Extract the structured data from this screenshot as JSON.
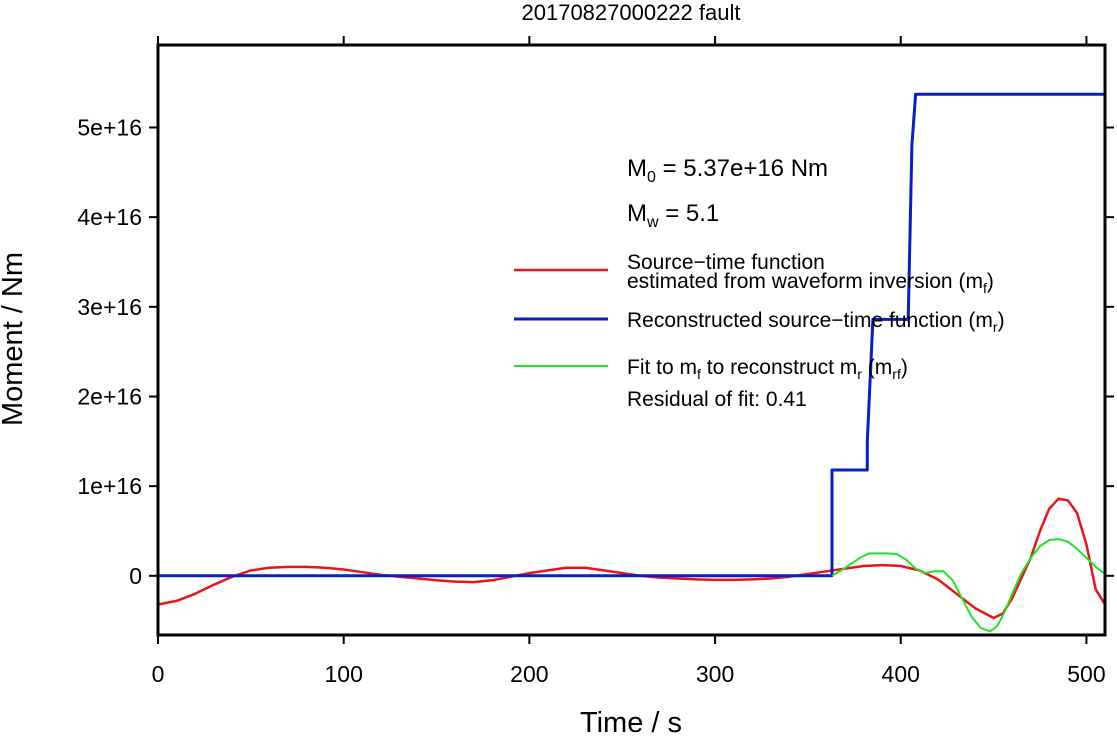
{
  "chart_data": {
    "type": "line",
    "title": "20170827000222 fault",
    "xlabel": "Time / s",
    "ylabel": "Moment / Nm",
    "xlim": [
      0,
      510
    ],
    "ylim": [
      -6600000000000000.0,
      5.92e+16
    ],
    "x_ticks": [
      0,
      100,
      200,
      300,
      400,
      500
    ],
    "x_tick_labels": [
      "0",
      "100",
      "200",
      "300",
      "400",
      "500"
    ],
    "y_ticks": [
      0,
      1e+16,
      2e+16,
      3e+16,
      4e+16,
      5e+16
    ],
    "y_tick_labels": [
      "0",
      "1e+16",
      "2e+16",
      "3e+16",
      "4e+16",
      "5e+16"
    ],
    "grid": false,
    "legend_position": "right",
    "annotations": {
      "m0_base": "M",
      "m0_sub": "0",
      "m0_rest": " = 5.37e+16 Nm",
      "mw_base": "M",
      "mw_sub": "w",
      "mw_rest": " = 5.1",
      "residual": "Residual of fit: 0.41"
    },
    "legend": [
      {
        "color": "#e8141e",
        "line1": "Source−time function",
        "line2_pre": "estimated from waveform inversion (m",
        "line2_sub": "f",
        "line2_post": ")"
      },
      {
        "color": "#0a1ec8",
        "line1_pre": "Reconstructed source−time function (m",
        "line1_sub": "r",
        "line1_post": ")"
      },
      {
        "color": "#1ee61e",
        "pre": "Fit to m",
        "sub1": "f",
        "mid": " to reconstruct m",
        "sub2": "r",
        "mid2": " (m",
        "sub3": "rf",
        "post": ")"
      }
    ],
    "series": [
      {
        "color": "#e8141e",
        "x": [
          0,
          10,
          20,
          30,
          40,
          50,
          60,
          70,
          80,
          90,
          100,
          110,
          120,
          130,
          140,
          150,
          160,
          170,
          180,
          190,
          200,
          210,
          220,
          230,
          240,
          250,
          260,
          270,
          280,
          290,
          300,
          310,
          320,
          330,
          340,
          350,
          360,
          370,
          380,
          390,
          400,
          410,
          420,
          430,
          440,
          450,
          455,
          460,
          470,
          475,
          480,
          485,
          490,
          495,
          500,
          505,
          510
        ],
        "y": [
          -3200000000000000.0,
          -2800000000000000.0,
          -2000000000000000.0,
          -1000000000000000.0,
          -100000000000000.0,
          600000000000000.0,
          900000000000000.0,
          1000000000000000.0,
          1000000000000000.0,
          900000000000000.0,
          700000000000000.0,
          400000000000000.0,
          100000000000000.0,
          -100000000000000.0,
          -300000000000000.0,
          -500000000000000.0,
          -650000000000000.0,
          -700000000000000.0,
          -500000000000000.0,
          -100000000000000.0,
          300000000000000.0,
          600000000000000.0,
          900000000000000.0,
          900000000000000.0,
          600000000000000.0,
          300000000000000.0,
          0,
          -200000000000000.0,
          -300000000000000.0,
          -400000000000000.0,
          -450000000000000.0,
          -450000000000000.0,
          -400000000000000.0,
          -300000000000000.0,
          -100000000000000.0,
          200000000000000.0,
          500000000000000.0,
          800000000000000.0,
          1100000000000000.0,
          1200000000000000.0,
          1100000000000000.0,
          600000000000000.0,
          -400000000000000.0,
          -2000000000000000.0,
          -3600000000000000.0,
          -4700000000000000.0,
          -4200000000000000.0,
          -2500000000000000.0,
          2000000000000000.0,
          5000000000000000.0,
          7500000000000000.0,
          8600000000000000.0,
          8400000000000000.0,
          7000000000000000.0,
          3500000000000000.0,
          -1500000000000000.0,
          -3200000000000000.0
        ]
      },
      {
        "color": "#0a1ec8",
        "x": [
          0,
          363,
          363,
          363,
          382,
          382,
          385,
          388,
          388,
          404,
          406,
          408,
          510
        ],
        "y": [
          0,
          0,
          8000000000000000.0,
          1.18e+16,
          1.18e+16,
          1.5e+16,
          2.86e+16,
          2.86e+16,
          2.86e+16,
          2.86e+16,
          4.8e+16,
          5.37e+16,
          5.37e+16
        ]
      },
      {
        "color": "#1ee61e",
        "x": [
          363,
          368,
          373,
          378,
          383,
          388,
          393,
          398,
          403,
          408,
          413,
          418,
          423,
          428,
          433,
          438,
          443,
          448,
          452,
          456,
          460,
          465,
          470,
          475,
          480,
          485,
          490,
          495,
          500,
          505,
          510
        ],
        "y": [
          0,
          600000000000000.0,
          1300000000000000.0,
          2000000000000000.0,
          2500000000000000.0,
          2500000000000000.0,
          2500000000000000.0,
          2400000000000000.0,
          1800000000000000.0,
          800000000000000.0,
          300000000000000.0,
          500000000000000.0,
          500000000000000.0,
          -500000000000000.0,
          -2500000000000000.0,
          -4500000000000000.0,
          -5800000000000000.0,
          -6200000000000000.0,
          -5600000000000000.0,
          -4000000000000000.0,
          -2000000000000000.0,
          300000000000000.0,
          2000000000000000.0,
          3300000000000000.0,
          4000000000000000.0,
          4100000000000000.0,
          3800000000000000.0,
          3000000000000000.0,
          2000000000000000.0,
          1000000000000000.0,
          200000000000000.0
        ]
      }
    ]
  }
}
